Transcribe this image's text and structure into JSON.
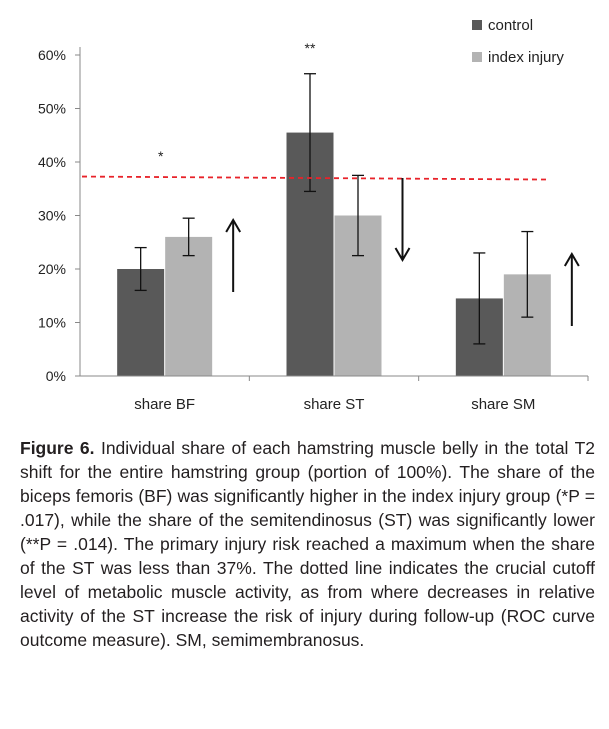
{
  "chart_data": {
    "type": "bar",
    "categories": [
      "share BF",
      "share ST",
      "share SM"
    ],
    "series": [
      {
        "name": "control",
        "color": "#595959",
        "values": [
          20,
          45.5,
          14.5
        ],
        "error": [
          4,
          11,
          8.5
        ]
      },
      {
        "name": "index injury",
        "color": "#b3b3b3",
        "values": [
          26,
          30,
          19
        ],
        "error": [
          3.5,
          7.5,
          8
        ]
      }
    ],
    "ylim": [
      0,
      60
    ],
    "yticks": [
      "0%",
      "10%",
      "20%",
      "30%",
      "40%",
      "50%",
      "60%"
    ],
    "ytick_values": [
      0,
      10,
      20,
      30,
      40,
      50,
      60
    ],
    "reference_line": {
      "value": 37,
      "color": "#e8232a",
      "style": "dashed"
    },
    "annotations": [
      {
        "category": 0,
        "text": "*"
      },
      {
        "category": 1,
        "text": "**"
      }
    ],
    "arrows": [
      "up",
      "down",
      "up"
    ],
    "legend_position": "top-right"
  },
  "caption": {
    "label": "Figure 6.",
    "text": " Individual share of each hamstring muscle belly in the total T2 shift for the entire hamstring group (portion of 100%). The share of the biceps femoris (BF) was significantly higher in the index injury group (*P = .017), while the share of the semitendinosus (ST) was significantly lower (**P = .014). The primary injury risk reached a maximum when the share of the ST was less than 37%. The dotted line indicates the crucial cutoff level of metabolic muscle activity, as from where decreases in relative activity of the ST increase the risk of injury during follow-up (ROC curve outcome measure). SM, semimembranosus."
  }
}
